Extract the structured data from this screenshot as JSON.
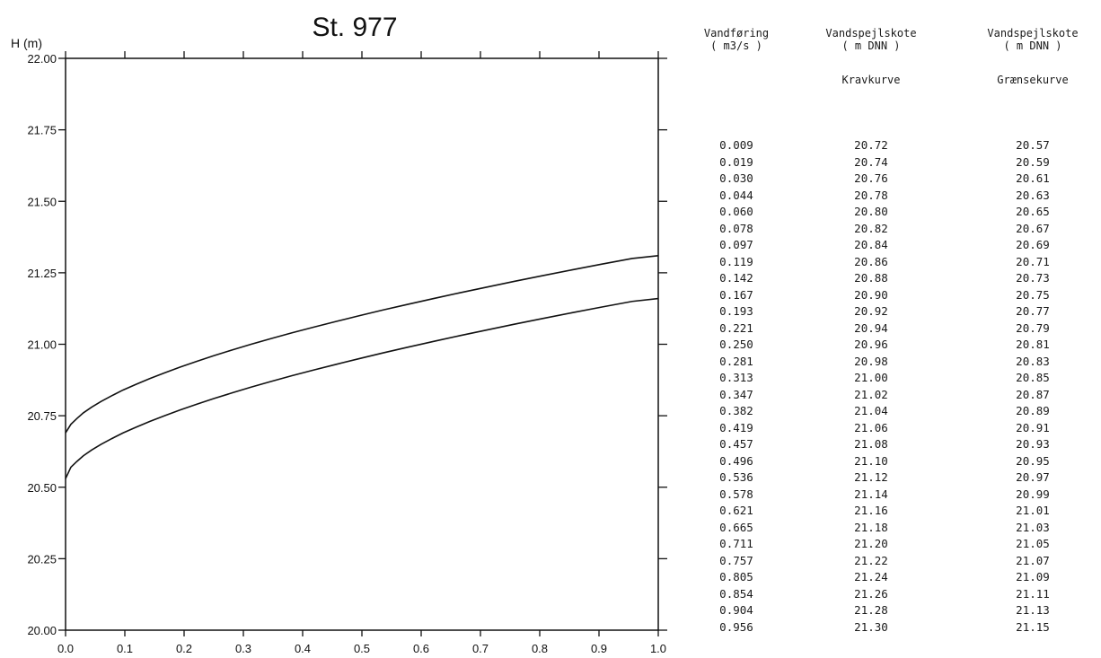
{
  "chart_data": {
    "type": "line",
    "title": "St. 977",
    "ylabel": "H (m)",
    "xlabel": "",
    "xlim": [
      0.0,
      1.0
    ],
    "ylim": [
      20.0,
      22.0
    ],
    "x_ticks": [
      "0.0",
      "0.1",
      "0.2",
      "0.3",
      "0.4",
      "0.5",
      "0.6",
      "0.7",
      "0.8",
      "0.9",
      "1.0"
    ],
    "y_ticks": [
      "20.00",
      "20.25",
      "20.50",
      "20.75",
      "21.00",
      "21.25",
      "21.50",
      "21.75",
      "22.00"
    ],
    "grid": false,
    "series": [
      {
        "x": [
          0.0,
          0.009,
          0.019,
          0.03,
          0.044,
          0.06,
          0.078,
          0.097,
          0.119,
          0.142,
          0.167,
          0.193,
          0.221,
          0.25,
          0.281,
          0.313,
          0.347,
          0.382,
          0.419,
          0.457,
          0.496,
          0.536,
          0.578,
          0.621,
          0.665,
          0.711,
          0.757,
          0.805,
          0.854,
          0.904,
          0.956,
          1.0
        ],
        "y": [
          20.69,
          20.72,
          20.74,
          20.76,
          20.78,
          20.8,
          20.82,
          20.84,
          20.86,
          20.88,
          20.9,
          20.92,
          20.94,
          20.96,
          20.98,
          21.0,
          21.02,
          21.04,
          21.06,
          21.08,
          21.1,
          21.12,
          21.14,
          21.16,
          21.18,
          21.2,
          21.22,
          21.24,
          21.26,
          21.28,
          21.3,
          21.31
        ]
      },
      {
        "x": [
          0.0,
          0.009,
          0.019,
          0.03,
          0.044,
          0.06,
          0.078,
          0.097,
          0.119,
          0.142,
          0.167,
          0.193,
          0.221,
          0.25,
          0.281,
          0.313,
          0.347,
          0.382,
          0.419,
          0.457,
          0.496,
          0.536,
          0.578,
          0.621,
          0.665,
          0.711,
          0.757,
          0.805,
          0.854,
          0.904,
          0.956,
          1.0
        ],
        "y": [
          20.53,
          20.57,
          20.59,
          20.61,
          20.63,
          20.65,
          20.67,
          20.69,
          20.71,
          20.73,
          20.75,
          20.77,
          20.79,
          20.81,
          20.83,
          20.85,
          20.87,
          20.89,
          20.91,
          20.93,
          20.95,
          20.97,
          20.99,
          21.01,
          21.03,
          21.05,
          21.07,
          21.09,
          21.11,
          21.13,
          21.15,
          21.16
        ]
      }
    ]
  },
  "table": {
    "col1_header": [
      "Vandføring",
      "( m3/s )"
    ],
    "col2_header": [
      "Vandspejlskote",
      "( m DNN )"
    ],
    "col3_header": [
      "Vandspejlskote",
      "( m DNN )"
    ],
    "col2_sub": "Kravkurve",
    "col3_sub": "Grænsekurve",
    "flow": [
      "0.009",
      "0.019",
      "0.030",
      "0.044",
      "0.060",
      "0.078",
      "0.097",
      "0.119",
      "0.142",
      "0.167",
      "0.193",
      "0.221",
      "0.250",
      "0.281",
      "0.313",
      "0.347",
      "0.382",
      "0.419",
      "0.457",
      "0.496",
      "0.536",
      "0.578",
      "0.621",
      "0.665",
      "0.711",
      "0.757",
      "0.805",
      "0.854",
      "0.904",
      "0.956"
    ],
    "krav": [
      "20.72",
      "20.74",
      "20.76",
      "20.78",
      "20.80",
      "20.82",
      "20.84",
      "20.86",
      "20.88",
      "20.90",
      "20.92",
      "20.94",
      "20.96",
      "20.98",
      "21.00",
      "21.02",
      "21.04",
      "21.06",
      "21.08",
      "21.10",
      "21.12",
      "21.14",
      "21.16",
      "21.18",
      "21.20",
      "21.22",
      "21.24",
      "21.26",
      "21.28",
      "21.30"
    ],
    "graense": [
      "20.57",
      "20.59",
      "20.61",
      "20.63",
      "20.65",
      "20.67",
      "20.69",
      "20.71",
      "20.73",
      "20.75",
      "20.77",
      "20.79",
      "20.81",
      "20.83",
      "20.85",
      "20.87",
      "20.89",
      "20.91",
      "20.93",
      "20.95",
      "20.97",
      "20.99",
      "21.01",
      "21.03",
      "21.05",
      "21.07",
      "21.09",
      "21.11",
      "21.13",
      "21.15"
    ]
  }
}
